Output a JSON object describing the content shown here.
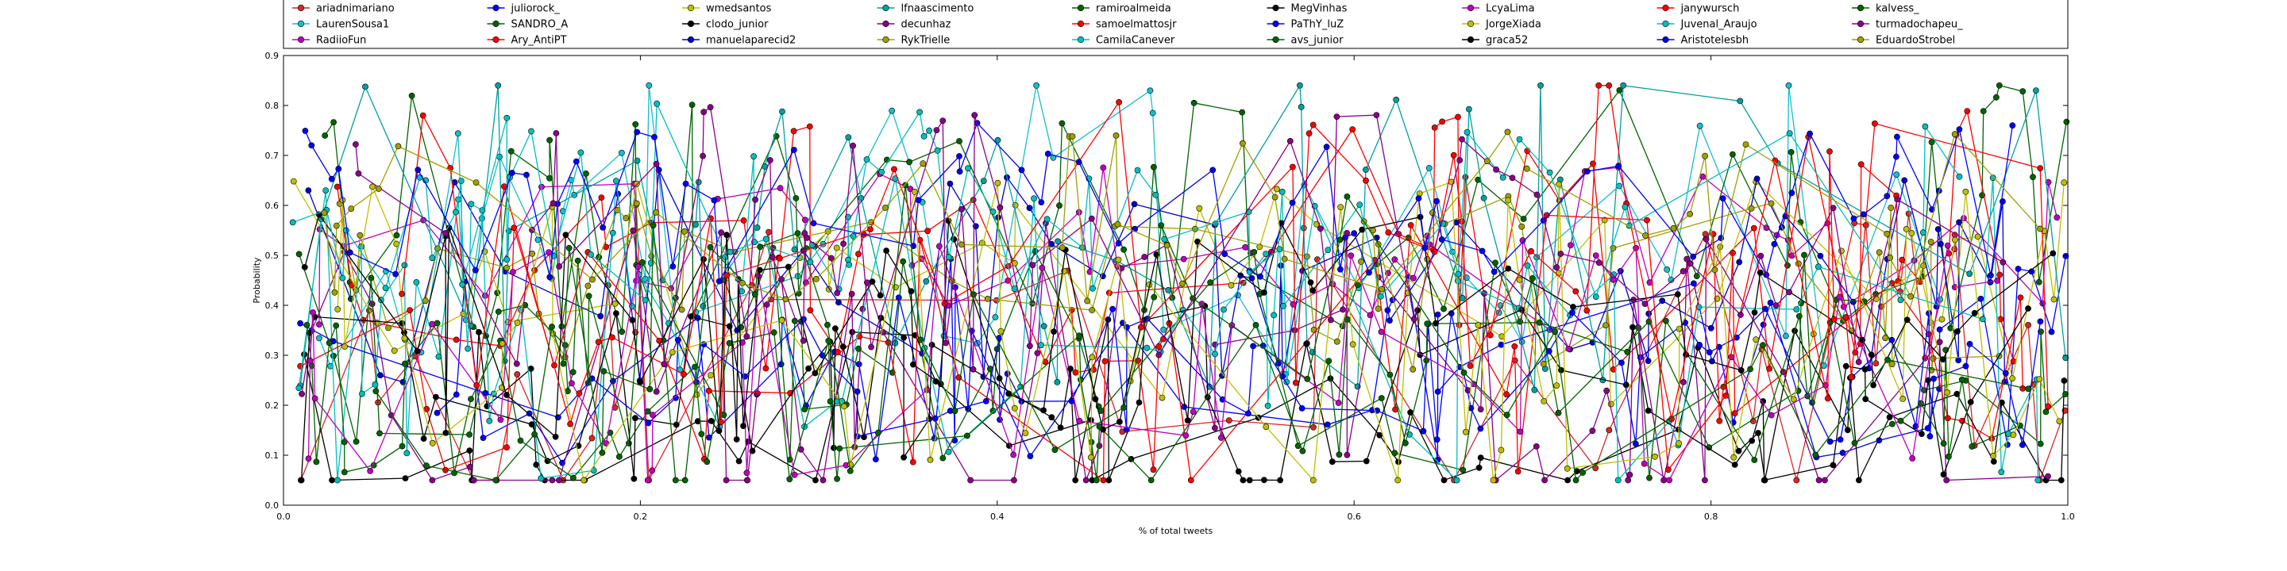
{
  "chart_data": {
    "type": "line",
    "title": "",
    "xlabel": "% of total tweets",
    "ylabel": "Probability",
    "xlim": [
      0,
      1
    ],
    "ylim": [
      0,
      0.9
    ],
    "x_ticks": [
      "0.0",
      "0.2",
      "0.4",
      "0.6",
      "0.8",
      "1.0"
    ],
    "y_ticks": [
      "0.0",
      "0.1",
      "0.2",
      "0.3",
      "0.4",
      "0.5",
      "0.6",
      "0.7",
      "0.8",
      "0.9"
    ],
    "grid": false,
    "legend_position": "top",
    "series": [
      {
        "name": "ariadnimariano",
        "color": "#d62728"
      },
      {
        "name": "LaurenSousa1",
        "color": "#17becf"
      },
      {
        "name": "RadiioFun",
        "color": "#bf00bf"
      },
      {
        "name": "juliorock_",
        "color": "#0000ff"
      },
      {
        "name": "SANDRO_A",
        "color": "#006400"
      },
      {
        "name": "Ary_AntiPT",
        "color": "#ff0000"
      },
      {
        "name": "wmedsantos",
        "color": "#bfbf00"
      },
      {
        "name": "clodo_junior",
        "color": "#000000"
      },
      {
        "name": "manuelaparecid2",
        "color": "#0000cc"
      },
      {
        "name": "lfnaascimento",
        "color": "#00a0a0"
      },
      {
        "name": "decunhaz",
        "color": "#8b008b"
      },
      {
        "name": "RykTrielle",
        "color": "#a0a000"
      },
      {
        "name": "ramiroalmeida",
        "color": "#006400"
      },
      {
        "name": "samoelmattosjr",
        "color": "#ff0000"
      },
      {
        "name": "CamilaCanever",
        "color": "#00bfbf"
      },
      {
        "name": "MegVinhas",
        "color": "#000000"
      },
      {
        "name": "PaThY_luZ",
        "color": "#0000ff"
      },
      {
        "name": "avs_junior",
        "color": "#006400"
      },
      {
        "name": "LcyaLima",
        "color": "#bf00bf"
      },
      {
        "name": "JorgeXiada",
        "color": "#bfbf00"
      },
      {
        "name": "graca52",
        "color": "#000000"
      },
      {
        "name": "janywursch",
        "color": "#ff0000"
      },
      {
        "name": "Juvenal_Araujo",
        "color": "#00bfbf"
      },
      {
        "name": "Aristotelesbh",
        "color": "#0000ff"
      },
      {
        "name": "kalvess_",
        "color": "#006400"
      },
      {
        "name": "turmadochapeu_",
        "color": "#8b008b"
      },
      {
        "name": "EduardoStrobel",
        "color": "#a0a000"
      }
    ]
  }
}
